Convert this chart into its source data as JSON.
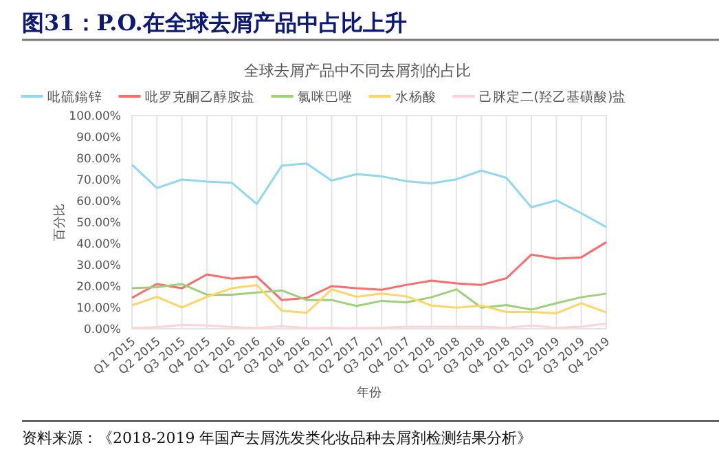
{
  "chart_data": {
    "type": "line",
    "title": "图31：P.O.在全球去屑产品中占比上升",
    "subtitle": "全球去屑产品中不同去屑剂的占比",
    "xlabel": "年份",
    "ylabel": "百分比",
    "annotations": [
      "资料来源：《2018-2019 年国产去屑洗发类化妆品种去屑剂检测结果分析》"
    ],
    "categories": [
      "Q1 2015",
      "Q2 2015",
      "Q3 2015",
      "Q4 2015",
      "Q1 2016",
      "Q2 2016",
      "Q3 2016",
      "Q4 2016",
      "Q1 2017",
      "Q2 2017",
      "Q3 2017",
      "Q4 2017",
      "Q1 2018",
      "Q2 2018",
      "Q3 2018",
      "Q4 2018",
      "Q1 2019",
      "Q2 2019",
      "Q3 2019",
      "Q4 2019"
    ],
    "series": [
      {
        "name": "吡硫鎓锌",
        "color": "#8fd8ef",
        "values": [
          77,
          66,
          70,
          69,
          68.5,
          58.5,
          76.5,
          77.5,
          69.5,
          72.5,
          71.5,
          69.2,
          68.2,
          70.1,
          74.2,
          70.8,
          57,
          60.2,
          54.2,
          47.7
        ]
      },
      {
        "name": "吡罗克酮乙醇胺盐",
        "color": "#ff6b6b",
        "values": [
          14.5,
          21,
          19,
          25.5,
          23.5,
          24.5,
          13.5,
          14.5,
          20,
          19,
          18.3,
          20.6,
          22.6,
          21.3,
          20.6,
          23.7,
          34.8,
          32.9,
          33.5,
          40.6
        ]
      },
      {
        "name": "氯咪巴唑",
        "color": "#9ed07a",
        "values": [
          19,
          19.5,
          21,
          16,
          16,
          17,
          18,
          13.5,
          13.5,
          10.7,
          13.1,
          12.4,
          14.8,
          18.5,
          9.9,
          11.1,
          9,
          12,
          14.8,
          16.5
        ]
      },
      {
        "name": "水杨酸",
        "color": "#ffd666",
        "values": [
          11,
          15,
          10,
          15,
          19,
          20.5,
          8.5,
          7.5,
          18.5,
          15,
          16.5,
          15.2,
          10.9,
          9.9,
          10.9,
          7.9,
          7.9,
          7.3,
          12,
          7.7
        ]
      },
      {
        "name": "己脒定二(羟乙基磺酸)盐",
        "color": "#ffd3d8",
        "values": [
          0.3,
          0.8,
          1.8,
          1.6,
          0.8,
          0.3,
          1.2,
          0.3,
          0.5,
          0.3,
          0.5,
          1,
          1,
          1,
          1,
          0.5,
          1.5,
          0.5,
          1,
          2.5
        ]
      }
    ],
    "ylim": [
      0,
      100
    ],
    "yticks": [
      {
        "value": 0,
        "label": "0.00%"
      },
      {
        "value": 10,
        "label": "10.00%"
      },
      {
        "value": 20,
        "label": "20.00%"
      },
      {
        "value": 30,
        "label": "30.00%"
      },
      {
        "value": 40,
        "label": "40.00%"
      },
      {
        "value": 50,
        "label": "50.00%"
      },
      {
        "value": 60,
        "label": "60.00%"
      },
      {
        "value": 70,
        "label": "70.00%"
      },
      {
        "value": 80,
        "label": "80.00%"
      },
      {
        "value": 90,
        "label": "90.00%"
      },
      {
        "value": 100,
        "label": "100.00%"
      }
    ],
    "grid": "x",
    "legend": "top",
    "line_style": "solid"
  }
}
